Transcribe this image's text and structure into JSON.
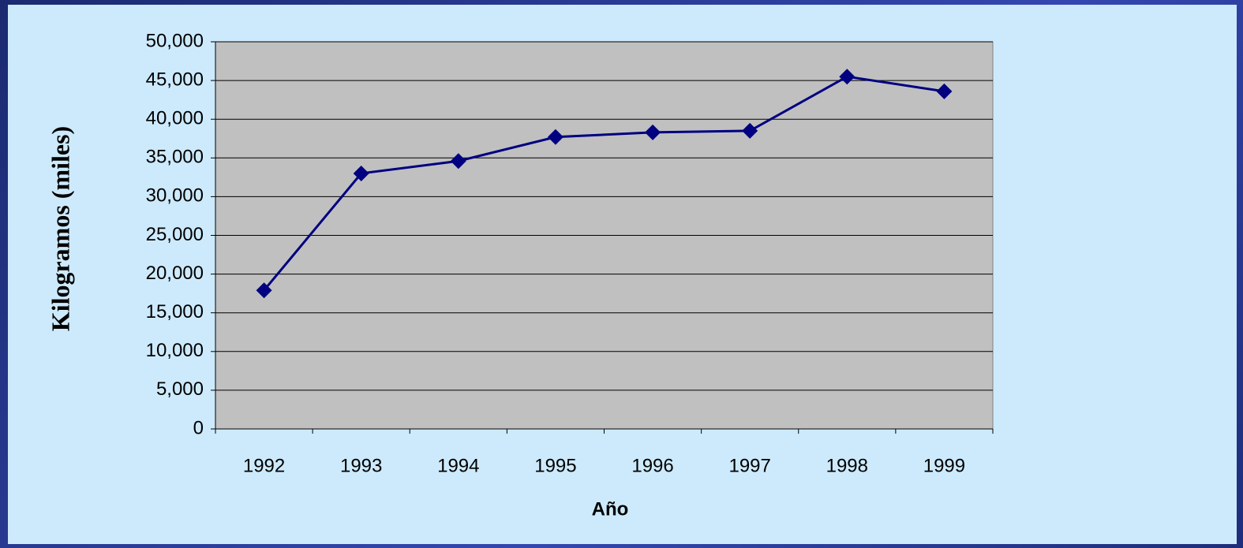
{
  "chart_data": {
    "type": "line",
    "x_label": "Año",
    "y_label": "Kilogramos (miles)",
    "categories": [
      "1992",
      "1993",
      "1994",
      "1995",
      "1996",
      "1997",
      "1998",
      "1999"
    ],
    "series": [
      {
        "color": "#000080",
        "values": [
          17900,
          33000,
          34600,
          37700,
          38300,
          38500,
          45500,
          43600
        ]
      }
    ],
    "ylim": [
      0,
      50000
    ],
    "yticks": [
      0,
      {
        "value": 5000,
        "label": "5,000"
      },
      {
        "value": 10000,
        "label": "10,000"
      },
      {
        "value": 15000,
        "label": "15,000"
      },
      {
        "value": 20000,
        "label": "20,000"
      },
      {
        "value": 25000,
        "label": "25,000"
      },
      {
        "value": 30000,
        "label": "30,000"
      },
      {
        "value": 35000,
        "label": "35,000"
      },
      {
        "value": 40000,
        "label": "40,000"
      },
      {
        "value": 45000,
        "label": "45,000"
      },
      {
        "value": 50000,
        "label": "50,000"
      }
    ],
    "grid": true
  }
}
